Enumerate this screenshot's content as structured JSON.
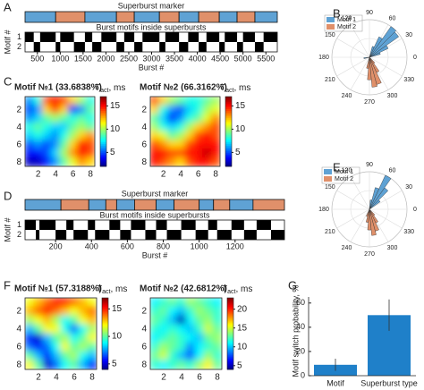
{
  "chart_data": [
    {
      "type": "raster",
      "panel_label": "A",
      "marker_title": "Superburst marker",
      "motif_title": "Burst motifs inside superbursts",
      "xlabel": "Burst #",
      "ylabel": "Motif #",
      "xlim": [
        230,
        5750
      ],
      "xticks": [
        500,
        1000,
        1500,
        2000,
        2500,
        3000,
        3500,
        4000,
        4500,
        5000,
        5500
      ],
      "yticks": [
        1,
        2
      ],
      "colors": [
        "#5fa2d4",
        "#e0906a"
      ],
      "segments": {
        "edges": [
          230,
          900,
          1540,
          2230,
          2620,
          3170,
          3600,
          4030,
          4480,
          4870,
          5260,
          5750
        ],
        "motif": [
          1,
          2,
          1,
          2,
          1,
          2,
          1,
          2,
          1,
          2,
          1
        ]
      },
      "bursts": {
        "edges": [
          230,
          420,
          560,
          900,
          1000,
          1300,
          1540,
          1700,
          1900,
          2230,
          2400,
          2620,
          2800,
          3170,
          3300,
          3600,
          3800,
          4030,
          4200,
          4480,
          4600,
          4870,
          5000,
          5260,
          5450,
          5750
        ],
        "motif": [
          1,
          2,
          1,
          2,
          1,
          2,
          1,
          2,
          1,
          2,
          1,
          2,
          1,
          2,
          1,
          2,
          1,
          2,
          1,
          2,
          1,
          2,
          1,
          2,
          1
        ]
      }
    },
    {
      "type": "polar",
      "panel_label": "B",
      "thetaticks": [
        0,
        30,
        60,
        90,
        120,
        150,
        180,
        210,
        240,
        270,
        300,
        330
      ],
      "rlim": [
        0,
        1
      ],
      "bin_width": 10,
      "series": [
        {
          "name": "Motif 1",
          "color": "#5fa2d4",
          "angles": [
            20,
            30,
            40,
            50,
            60,
            70,
            190
          ],
          "values": [
            0.3,
            0.55,
            0.95,
            1.0,
            0.6,
            0.3,
            0.15
          ]
        },
        {
          "name": "Motif 2",
          "color": "#e0906a",
          "angles": [
            260,
            270,
            280,
            290,
            300,
            310
          ],
          "values": [
            0.3,
            0.6,
            0.8,
            0.75,
            0.45,
            0.2
          ]
        }
      ]
    },
    {
      "type": "heatmap",
      "panel_label": "C",
      "title": "Motif №1 (33.6838%)",
      "cbar_label": {
        "symbol": "T",
        "subscript": "act",
        "unit": ", ms"
      },
      "xlim": [
        0.5,
        8.5
      ],
      "ylim": [
        0.5,
        8.5
      ],
      "xticks": [
        2,
        4,
        6,
        8
      ],
      "yticks": [
        2,
        4,
        6,
        8
      ],
      "clim": [
        2,
        17
      ],
      "cticks": [
        5,
        10,
        15
      ],
      "colormap": "jet",
      "values": [
        [
          6,
          8,
          14,
          15,
          14,
          12,
          10,
          8
        ],
        [
          5,
          6,
          12,
          14,
          12,
          4,
          6,
          9
        ],
        [
          6,
          7,
          9,
          10,
          9,
          8,
          9,
          8
        ],
        [
          8,
          9,
          8,
          7,
          7,
          9,
          10,
          9
        ],
        [
          7,
          8,
          7,
          6,
          8,
          10,
          12,
          13
        ],
        [
          5,
          6,
          5,
          6,
          9,
          12,
          15,
          14
        ],
        [
          4,
          4,
          5,
          7,
          10,
          13,
          15,
          14
        ],
        [
          3,
          3,
          4,
          6,
          9,
          11,
          13,
          12
        ]
      ]
    },
    {
      "type": "heatmap",
      "title": "Motif №2 (66.3162%)",
      "cbar_label": {
        "symbol": "T",
        "subscript": "act",
        "unit": ", ms"
      },
      "xlim": [
        0.5,
        8.5
      ],
      "ylim": [
        0.5,
        8.5
      ],
      "xticks": [
        2,
        4,
        6,
        8
      ],
      "yticks": [
        2,
        4,
        6,
        8
      ],
      "clim": [
        2,
        17
      ],
      "cticks": [
        5,
        10,
        15
      ],
      "colormap": "jet",
      "values": [
        [
          14,
          12,
          10,
          9,
          8,
          8,
          9,
          10
        ],
        [
          12,
          8,
          6,
          5,
          7,
          8,
          10,
          11
        ],
        [
          9,
          7,
          4,
          6,
          8,
          9,
          11,
          13
        ],
        [
          10,
          8,
          7,
          8,
          10,
          12,
          13,
          14
        ],
        [
          12,
          11,
          9,
          10,
          12,
          14,
          15,
          14
        ],
        [
          14,
          13,
          12,
          12,
          14,
          15,
          15,
          15
        ],
        [
          15,
          15,
          14,
          14,
          15,
          15,
          16,
          15
        ],
        [
          15,
          14,
          13,
          12,
          14,
          15,
          15,
          14
        ]
      ]
    },
    {
      "type": "raster",
      "panel_label": "D",
      "marker_title": "Superburst marker",
      "motif_title": "Burst motifs inside superbursts",
      "xlabel": "Burst #",
      "ylabel": "Motif #",
      "xlim": [
        30,
        1475
      ],
      "xticks": [
        200,
        400,
        600,
        800,
        1000,
        1200
      ],
      "yticks": [
        1,
        2
      ],
      "colors": [
        "#5fa2d4",
        "#e0906a"
      ],
      "segments": {
        "edges": [
          30,
          230,
          385,
          480,
          540,
          640,
          760,
          860,
          1000,
          1080,
          1170,
          1300,
          1475
        ],
        "motif": [
          1,
          2,
          1,
          2,
          1,
          2,
          1,
          2,
          1,
          2,
          1,
          2
        ]
      },
      "bursts": {
        "edges": [
          30,
          90,
          110,
          200,
          260,
          300,
          380,
          420,
          500,
          560,
          620,
          700,
          760,
          820,
          900,
          980,
          1050,
          1100,
          1180,
          1250,
          1320,
          1400,
          1475
        ],
        "motif": [
          1,
          2,
          1,
          2,
          1,
          2,
          1,
          2,
          1,
          2,
          1,
          2,
          1,
          2,
          1,
          2,
          1,
          2,
          1,
          2,
          1,
          2
        ]
      }
    },
    {
      "type": "polar",
      "panel_label": "E",
      "thetaticks": [
        0,
        30,
        60,
        90,
        120,
        150,
        180,
        210,
        240,
        270,
        300,
        330
      ],
      "rlim": [
        0,
        1
      ],
      "bin_width": 10,
      "series": [
        {
          "name": "Motif 1",
          "color": "#5fa2d4",
          "angles": [
            40,
            50,
            60,
            70,
            80
          ],
          "values": [
            0.35,
            0.7,
            1.0,
            0.6,
            0.25
          ]
        },
        {
          "name": "Motif 2",
          "color": "#e0906a",
          "angles": [
            250,
            260,
            270,
            280,
            290,
            300,
            310
          ],
          "values": [
            0.2,
            0.35,
            0.55,
            0.7,
            0.6,
            0.4,
            0.2
          ]
        }
      ]
    },
    {
      "type": "heatmap",
      "panel_label": "F",
      "title": "Motif №1 (57.3188%)",
      "cbar_label": {
        "symbol": "T",
        "subscript": "act",
        "unit": ", ms"
      },
      "xlim": [
        0.5,
        8.5
      ],
      "ylim": [
        0.5,
        8.5
      ],
      "xticks": [
        2,
        4,
        6,
        8
      ],
      "yticks": [
        2,
        4,
        6,
        8
      ],
      "clim": [
        4,
        17
      ],
      "cticks": [
        5,
        10,
        15
      ],
      "colormap": "jet",
      "values": [
        [
          12,
          13,
          14,
          15,
          15,
          14,
          13,
          12
        ],
        [
          13,
          14,
          15,
          14,
          13,
          12,
          13,
          14
        ],
        [
          11,
          12,
          13,
          11,
          9,
          10,
          12,
          13
        ],
        [
          8,
          10,
          12,
          12,
          9,
          7,
          9,
          11
        ],
        [
          6,
          5,
          8,
          10,
          11,
          9,
          10,
          12
        ],
        [
          7,
          6,
          7,
          9,
          12,
          10,
          11,
          10
        ],
        [
          10,
          8,
          6,
          8,
          10,
          11,
          9,
          8
        ],
        [
          12,
          10,
          5,
          7,
          9,
          10,
          8,
          6
        ]
      ]
    },
    {
      "type": "heatmap",
      "title": "Motif №2 (42.6812%)",
      "cbar_label": {
        "symbol": "T",
        "subscript": "act",
        "unit": ", ms"
      },
      "xlim": [
        0.5,
        8.5
      ],
      "ylim": [
        0.5,
        8.5
      ],
      "xticks": [
        2,
        4,
        6,
        8
      ],
      "yticks": [
        2,
        4,
        6,
        8
      ],
      "clim": [
        4,
        23
      ],
      "cticks": [
        5,
        10,
        15,
        20
      ],
      "colormap": "jet",
      "values": [
        [
          11,
          12,
          13,
          12,
          14,
          13,
          12,
          11
        ],
        [
          12,
          13,
          11,
          10,
          12,
          14,
          13,
          12
        ],
        [
          13,
          12,
          10,
          5,
          11,
          13,
          14,
          12
        ],
        [
          12,
          11,
          12,
          11,
          10,
          12,
          15,
          13
        ],
        [
          11,
          12,
          13,
          12,
          11,
          10,
          13,
          14
        ],
        [
          12,
          14,
          13,
          12,
          9,
          11,
          12,
          13
        ],
        [
          13,
          15,
          12,
          10,
          8,
          11,
          14,
          12
        ],
        [
          12,
          11,
          12,
          13,
          12,
          14,
          16,
          13
        ]
      ]
    },
    {
      "type": "bar",
      "panel_label": "G",
      "ylabel": "Motif switch probability, %",
      "categories": [
        "Motif",
        "Superburst type"
      ],
      "values": [
        9,
        50
      ],
      "errors": [
        5,
        13
      ],
      "color": "#1f80c9",
      "ylim": [
        0,
        65
      ],
      "yticks": [
        0,
        20,
        40,
        60
      ]
    }
  ]
}
